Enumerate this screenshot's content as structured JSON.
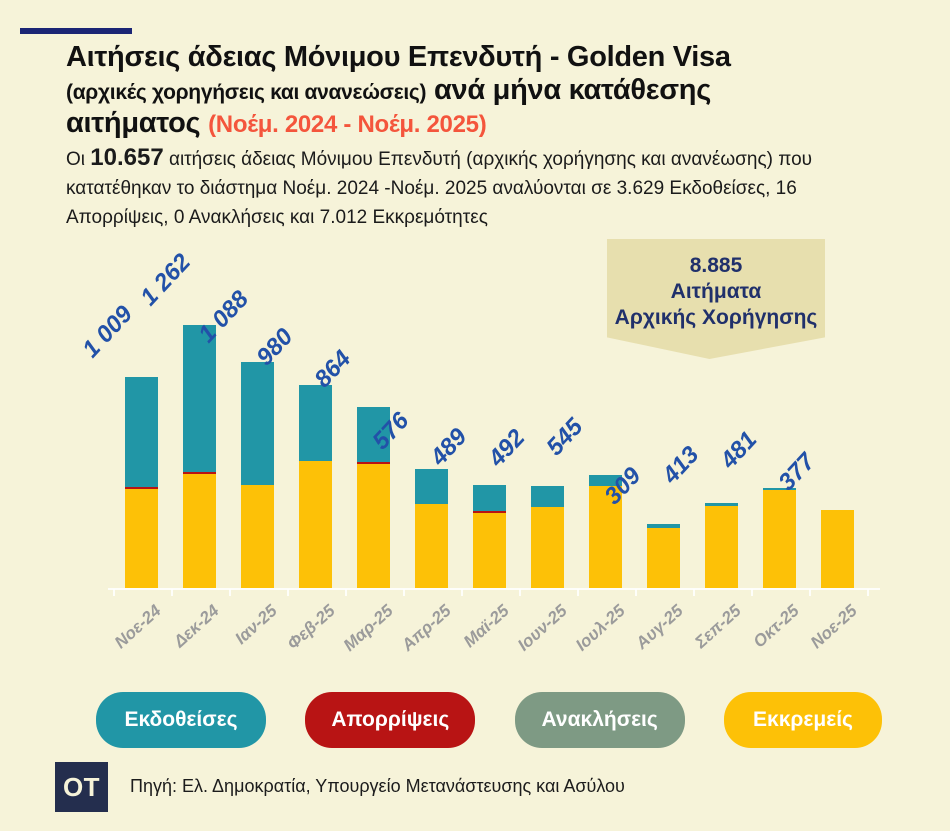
{
  "page": {
    "background": "#f6f3d9"
  },
  "header": {
    "accent_bar_color": "#1b2575",
    "title_line1": "Αιτήσεις άδειας Μόνιμου Επενδυτή - Golden Visa",
    "title_small": "(αρχικές χορηγήσεις και ανανεώσεις)",
    "title_line2_rest": "ανά μήνα κατάθεσης",
    "title_line3": "αιτήματος",
    "title_period": "(Νοέμ. 2024 - Νοέμ. 2025)",
    "period_color": "#f4553c"
  },
  "intro": {
    "prefix": "Οι",
    "total": "10.657",
    "rest": "αιτήσεις άδειας Μόνιμου Επενδυτή (αρχικής χορήγησης και ανανέωσης) που κατατέθηκαν το διάστημα Νοέμ. 2024 -Νοέμ. 2025 αναλύονται σε 3.629 Εκδοθείσες, 16 Απορρίψεις, 0 Ανακλήσεις και 7.012 Εκκρεμότητες"
  },
  "callout": {
    "value": "8.885",
    "line2": "Αιτήματα",
    "line3": "Αρχικής Χορήγησης",
    "bg": "#e7dfae",
    "text_color": "#20306b"
  },
  "chart_data": {
    "type": "bar",
    "stacked": true,
    "title": "Αιτήσεις άδειας Μόνιμου Επενδυτή - Golden Visa (αρχικές χορηγήσεις και ανανεώσεις) ανά μήνα κατάθεσης αιτήματος (Νοέμ. 2024 - Νοέμ. 2025)",
    "categories": [
      "Νοε-24",
      "Δεκ-24",
      "Ιαν-25",
      "Φεβ-25",
      "Μαρ-25",
      "Απρ-25",
      "Μαϊ-25",
      "Ιουν-25",
      "Ιουλ-25",
      "Αυγ-25",
      "Σεπ-25",
      "Οκτ-25",
      "Νοε-25"
    ],
    "totals": [
      1009,
      1262,
      1088,
      980,
      864,
      576,
      489,
      492,
      545,
      309,
      413,
      481,
      377
    ],
    "total_labels": [
      "1 009",
      "1 262",
      "1 088",
      "980",
      "864",
      "576",
      "489",
      "492",
      "545",
      "309",
      "413",
      "481",
      "377"
    ],
    "series": [
      {
        "name": "Εκκρεμείς",
        "color": "#fdc107",
        "values_est": [
          478,
          549,
          496,
          613,
          597,
          406,
          361,
          391,
          492,
          290,
          398,
          471,
          377
        ]
      },
      {
        "name": "Απορρίψεις",
        "color": "#b81414",
        "thin": true,
        "values_est": [
          2,
          2,
          0,
          0,
          2,
          0,
          2,
          0,
          0,
          0,
          0,
          0,
          0
        ]
      },
      {
        "name": "Εκδοθείσες",
        "color": "#2196a6",
        "values_est": [
          529,
          711,
          592,
          367,
          265,
          170,
          126,
          101,
          53,
          19,
          15,
          10,
          0
        ]
      }
    ],
    "grand_total": "8.885",
    "value_label_color": "#2251a8",
    "axis_label_color": "#9b9b9b",
    "ylim": [
      0,
      1300
    ],
    "grid": false,
    "legend_position": "bottom"
  },
  "legend": [
    {
      "label": "Εκδοθείσες",
      "color": "#2196a6"
    },
    {
      "label": "Απορρίψεις",
      "color": "#b81414"
    },
    {
      "label": "Ανακλήσεις",
      "color": "#7e9a84"
    },
    {
      "label": "Εκκρεμείς",
      "color": "#fdc107"
    }
  ],
  "footer": {
    "logo_text": "OT",
    "logo_bg": "#242e4e",
    "logo_fg": "#f6f3d9",
    "source": "Πηγή: Ελ. Δημοκρατία, Υπουργείο Μετανάστευσης και Ασύλου"
  }
}
